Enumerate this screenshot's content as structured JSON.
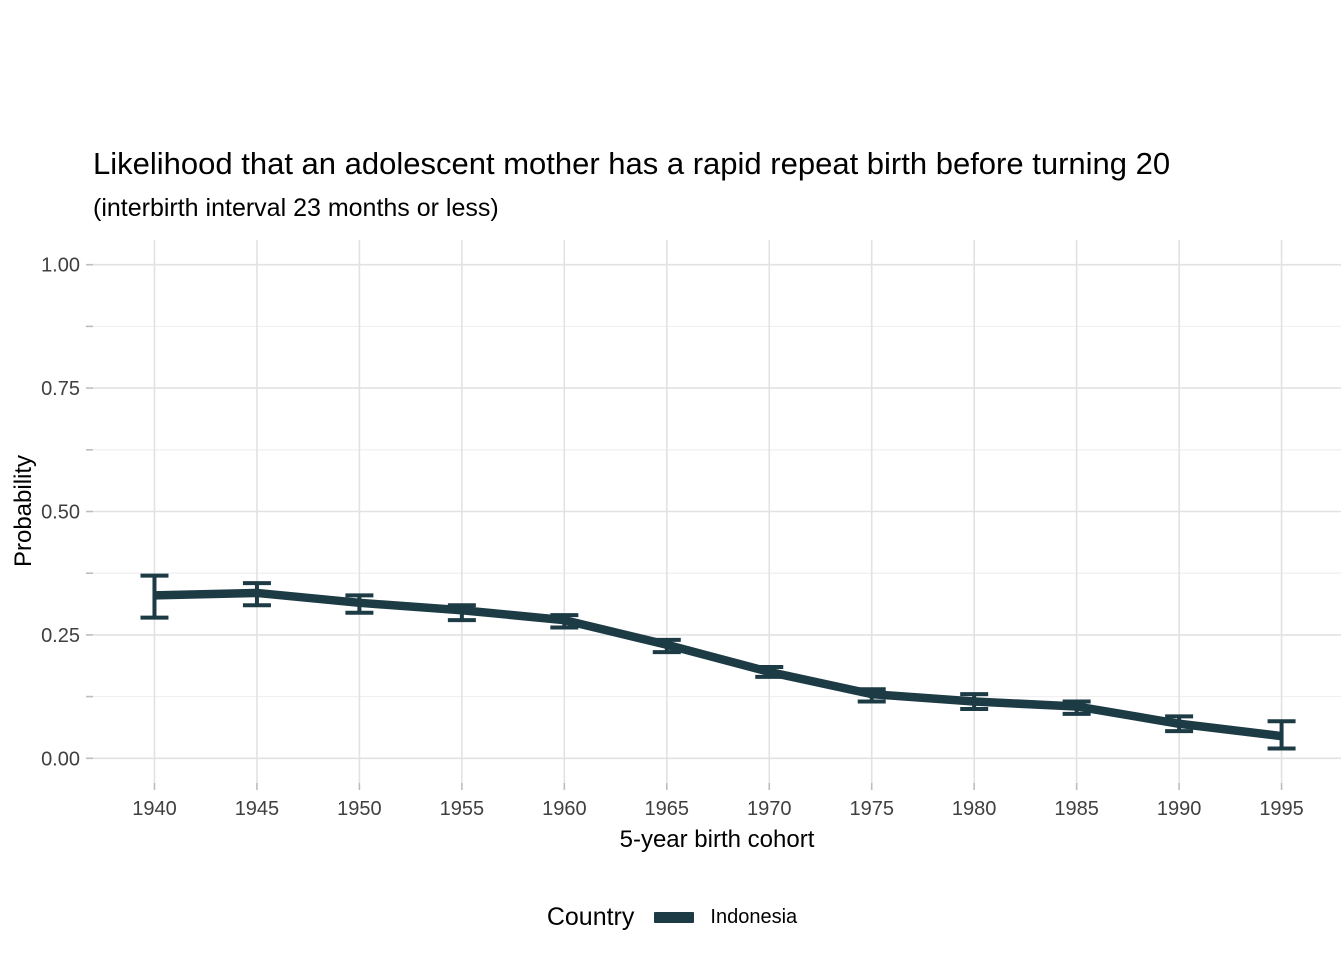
{
  "title": "Likelihood that an adolescent mother has a rapid repeat birth before turning 20",
  "subtitle": "(interbirth interval 23 months or less)",
  "legend": {
    "title": "Country",
    "items": [
      {
        "label": "Indonesia",
        "color": "#1d3b45"
      }
    ]
  },
  "colors": {
    "line": "#1d3b45",
    "grid_major": "#e2e2e2",
    "grid_minor": "#eeeeee",
    "axis_tick": "#bdbdbd",
    "tick_text": "#404040",
    "background": "#ffffff"
  },
  "chart_data": {
    "type": "line",
    "title": "Likelihood that an adolescent mother has a rapid repeat birth before turning 20",
    "subtitle": "(interbirth interval 23 months or less)",
    "xlabel": "5-year birth cohort",
    "ylabel": "Probability",
    "legend_title": "Country",
    "legend_position": "bottom",
    "grid": "major+minor-y, major-x",
    "x": [
      1940,
      1945,
      1950,
      1955,
      1960,
      1965,
      1970,
      1975,
      1980,
      1985,
      1990,
      1995
    ],
    "xtick_labels": [
      "1940",
      "1945",
      "1950",
      "1955",
      "1960",
      "1965",
      "1970",
      "1975",
      "1980",
      "1985",
      "1990",
      "1995"
    ],
    "yticks": [
      0.0,
      0.25,
      0.5,
      0.75,
      1.0
    ],
    "ytick_labels": [
      "0.00",
      "0.25",
      "0.50",
      "0.75",
      "1.00"
    ],
    "y_minor_ticks": [
      0.125,
      0.375,
      0.625,
      0.875
    ],
    "xlim": [
      1937.0,
      1997.9
    ],
    "ylim": [
      -0.05,
      1.05
    ],
    "series": [
      {
        "name": "Indonesia",
        "color": "#1d3b45",
        "values": [
          0.33,
          0.335,
          0.315,
          0.3,
          0.28,
          0.23,
          0.175,
          0.13,
          0.115,
          0.105,
          0.07,
          0.045
        ],
        "ci_low": [
          0.285,
          0.31,
          0.295,
          0.28,
          0.265,
          0.215,
          0.165,
          0.115,
          0.1,
          0.09,
          0.055,
          0.02
        ],
        "ci_high": [
          0.37,
          0.355,
          0.33,
          0.31,
          0.29,
          0.24,
          0.185,
          0.14,
          0.13,
          0.115,
          0.085,
          0.075
        ]
      }
    ]
  }
}
